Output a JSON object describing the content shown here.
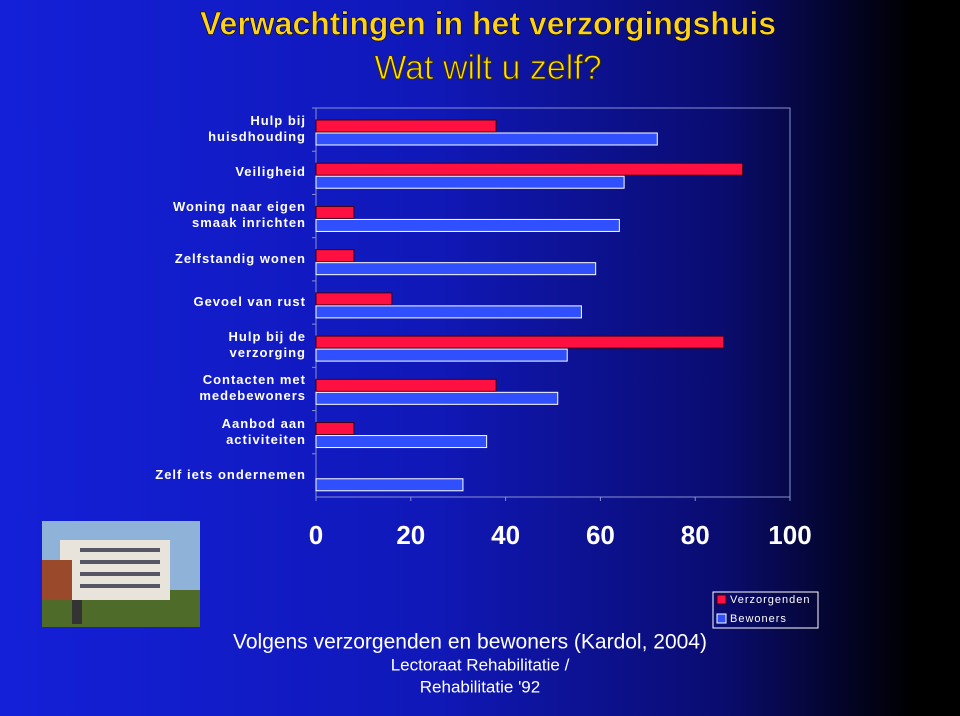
{
  "chart_data": {
    "type": "hbar",
    "title": "Verwachtingen in het verzorgingshuis",
    "subtitle": "Wat wilt u zelf?",
    "categories": [
      "Hulp bij\nhuisdhouding",
      "Veiligheid",
      "Woning naar eigen\nsmaak inrichten",
      "Zelfstandig wonen",
      "Gevoel van rust",
      "Hulp bij de\nverzorging",
      "Contacten met\nmedebewoners",
      "Aanbod aan\nactiviteiten",
      "Zelf iets ondernemen"
    ],
    "series": [
      {
        "name": "Verzorgenden",
        "color": "#ff1040",
        "values": [
          38,
          90,
          8,
          8,
          16,
          86,
          38,
          8,
          0
        ]
      },
      {
        "name": "Bewoners",
        "color": "#3050ff",
        "values": [
          72,
          65,
          64,
          59,
          56,
          53,
          51,
          36,
          31
        ]
      }
    ],
    "xlim": [
      0,
      100
    ],
    "xticks": [
      0,
      20,
      40,
      60,
      80,
      100
    ],
    "legend": "bottom-right",
    "caption": "Volgens verzorgenden en bewoners (Kardol, 2004)"
  },
  "footer": [
    "Lectoraat Rehabilitatie /",
    "Rehabilitatie '92"
  ]
}
